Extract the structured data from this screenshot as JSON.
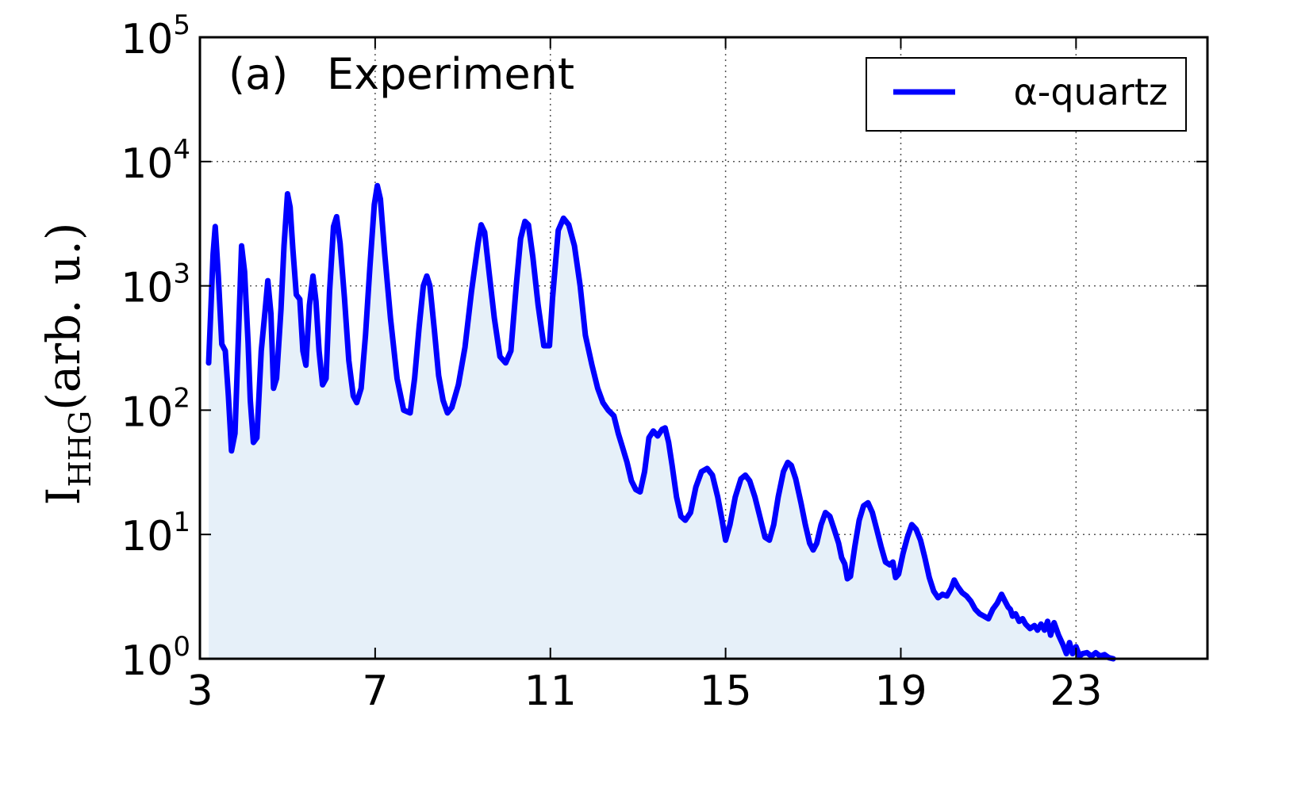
{
  "chart_data": {
    "type": "line",
    "panel_label": "(a)",
    "title": "Experiment",
    "xlabel": "",
    "ylabel": {
      "base": "I",
      "subscript": "HHG",
      "rest": "(arb. u.)"
    },
    "xlim": [
      3,
      26
    ],
    "ylim": [
      1,
      100000
    ],
    "yscale": "log",
    "grid": true,
    "legend_position": "top-right",
    "xticks": [
      {
        "value": 3,
        "label": "3"
      },
      {
        "value": 7,
        "label": "7"
      },
      {
        "value": 11,
        "label": "11"
      },
      {
        "value": 15,
        "label": "15"
      },
      {
        "value": 19,
        "label": "19"
      },
      {
        "value": 23,
        "label": "23"
      }
    ],
    "yticks": [
      {
        "value": 1,
        "base": "10",
        "exp": "0"
      },
      {
        "value": 10,
        "base": "10",
        "exp": "1"
      },
      {
        "value": 100,
        "base": "10",
        "exp": "2"
      },
      {
        "value": 1000,
        "base": "10",
        "exp": "3"
      },
      {
        "value": 10000,
        "base": "10",
        "exp": "4"
      },
      {
        "value": 100000,
        "base": "10",
        "exp": "5"
      }
    ],
    "series": [
      {
        "name": "α-quartz",
        "color": "#0000ff",
        "fill": "#e6f0f9",
        "points": [
          [
            3.2,
            240
          ],
          [
            3.25,
            650
          ],
          [
            3.3,
            1800
          ],
          [
            3.35,
            3000
          ],
          [
            3.42,
            1200
          ],
          [
            3.5,
            340
          ],
          [
            3.58,
            300
          ],
          [
            3.65,
            130
          ],
          [
            3.72,
            47
          ],
          [
            3.8,
            65
          ],
          [
            3.88,
            400
          ],
          [
            3.95,
            2100
          ],
          [
            4.02,
            1300
          ],
          [
            4.1,
            350
          ],
          [
            4.15,
            120
          ],
          [
            4.22,
            55
          ],
          [
            4.3,
            60
          ],
          [
            4.4,
            300
          ],
          [
            4.5,
            700
          ],
          [
            4.55,
            1100
          ],
          [
            4.62,
            600
          ],
          [
            4.68,
            150
          ],
          [
            4.75,
            180
          ],
          [
            4.85,
            650
          ],
          [
            4.92,
            2100
          ],
          [
            5.0,
            5500
          ],
          [
            5.06,
            4300
          ],
          [
            5.12,
            2000
          ],
          [
            5.2,
            850
          ],
          [
            5.28,
            780
          ],
          [
            5.35,
            300
          ],
          [
            5.42,
            230
          ],
          [
            5.5,
            700
          ],
          [
            5.58,
            1200
          ],
          [
            5.65,
            750
          ],
          [
            5.72,
            300
          ],
          [
            5.8,
            160
          ],
          [
            5.88,
            180
          ],
          [
            5.96,
            900
          ],
          [
            6.05,
            3000
          ],
          [
            6.12,
            3600
          ],
          [
            6.2,
            2200
          ],
          [
            6.3,
            800
          ],
          [
            6.4,
            250
          ],
          [
            6.5,
            130
          ],
          [
            6.58,
            115
          ],
          [
            6.68,
            150
          ],
          [
            6.78,
            400
          ],
          [
            6.88,
            1400
          ],
          [
            6.98,
            4500
          ],
          [
            7.05,
            6400
          ],
          [
            7.12,
            5000
          ],
          [
            7.22,
            1800
          ],
          [
            7.35,
            550
          ],
          [
            7.5,
            180
          ],
          [
            7.65,
            100
          ],
          [
            7.8,
            95
          ],
          [
            7.9,
            180
          ],
          [
            8.0,
            450
          ],
          [
            8.1,
            1000
          ],
          [
            8.18,
            1200
          ],
          [
            8.25,
            1000
          ],
          [
            8.35,
            450
          ],
          [
            8.45,
            190
          ],
          [
            8.55,
            120
          ],
          [
            8.65,
            95
          ],
          [
            8.75,
            105
          ],
          [
            8.9,
            160
          ],
          [
            9.05,
            320
          ],
          [
            9.2,
            900
          ],
          [
            9.35,
            2200
          ],
          [
            9.42,
            3100
          ],
          [
            9.5,
            2700
          ],
          [
            9.6,
            1300
          ],
          [
            9.72,
            550
          ],
          [
            9.85,
            270
          ],
          [
            9.98,
            240
          ],
          [
            10.1,
            300
          ],
          [
            10.22,
            1000
          ],
          [
            10.32,
            2400
          ],
          [
            10.42,
            3300
          ],
          [
            10.5,
            3100
          ],
          [
            10.6,
            1700
          ],
          [
            10.72,
            700
          ],
          [
            10.85,
            330
          ],
          [
            10.98,
            330
          ],
          [
            11.05,
            800
          ],
          [
            11.18,
            2800
          ],
          [
            11.3,
            3500
          ],
          [
            11.42,
            3100
          ],
          [
            11.55,
            2100
          ],
          [
            11.68,
            1000
          ],
          [
            11.8,
            400
          ],
          [
            11.95,
            230
          ],
          [
            12.08,
            150
          ],
          [
            12.2,
            115
          ],
          [
            12.32,
            100
          ],
          [
            12.45,
            90
          ],
          [
            12.55,
            65
          ],
          [
            12.65,
            50
          ],
          [
            12.75,
            38
          ],
          [
            12.85,
            27
          ],
          [
            12.95,
            23
          ],
          [
            13.05,
            22
          ],
          [
            13.15,
            32
          ],
          [
            13.25,
            60
          ],
          [
            13.35,
            68
          ],
          [
            13.45,
            62
          ],
          [
            13.55,
            70
          ],
          [
            13.62,
            72
          ],
          [
            13.7,
            55
          ],
          [
            13.78,
            36
          ],
          [
            13.88,
            20
          ],
          [
            13.98,
            14
          ],
          [
            14.08,
            13
          ],
          [
            14.2,
            15
          ],
          [
            14.32,
            24
          ],
          [
            14.45,
            32
          ],
          [
            14.58,
            34
          ],
          [
            14.7,
            30
          ],
          [
            14.82,
            20
          ],
          [
            14.92,
            13
          ],
          [
            15.0,
            9
          ],
          [
            15.1,
            12
          ],
          [
            15.22,
            20
          ],
          [
            15.35,
            28
          ],
          [
            15.45,
            30
          ],
          [
            15.55,
            27
          ],
          [
            15.67,
            20
          ],
          [
            15.78,
            14
          ],
          [
            15.9,
            9.5
          ],
          [
            16.0,
            9
          ],
          [
            16.1,
            12
          ],
          [
            16.2,
            20
          ],
          [
            16.32,
            32
          ],
          [
            16.42,
            38
          ],
          [
            16.5,
            36
          ],
          [
            16.6,
            28
          ],
          [
            16.72,
            18
          ],
          [
            16.82,
            12
          ],
          [
            16.92,
            8.5
          ],
          [
            17.0,
            7.5
          ],
          [
            17.08,
            8.5
          ],
          [
            17.18,
            12
          ],
          [
            17.28,
            15
          ],
          [
            17.38,
            14
          ],
          [
            17.48,
            11
          ],
          [
            17.58,
            8.5
          ],
          [
            17.65,
            6.5
          ],
          [
            17.72,
            5.8
          ],
          [
            17.78,
            4.4
          ],
          [
            17.85,
            4.6
          ],
          [
            17.95,
            8
          ],
          [
            18.05,
            13
          ],
          [
            18.15,
            17
          ],
          [
            18.25,
            18
          ],
          [
            18.35,
            15
          ],
          [
            18.45,
            11
          ],
          [
            18.55,
            8
          ],
          [
            18.65,
            6
          ],
          [
            18.75,
            5.7
          ],
          [
            18.82,
            6
          ],
          [
            18.88,
            4.5
          ],
          [
            18.95,
            4.8
          ],
          [
            19.05,
            7
          ],
          [
            19.15,
            9.5
          ],
          [
            19.25,
            12
          ],
          [
            19.35,
            11
          ],
          [
            19.45,
            9
          ],
          [
            19.55,
            6.5
          ],
          [
            19.65,
            4.5
          ],
          [
            19.75,
            3.5
          ],
          [
            19.85,
            3.1
          ],
          [
            19.95,
            3.3
          ],
          [
            20.05,
            3.2
          ],
          [
            20.15,
            3.7
          ],
          [
            20.22,
            4.3
          ],
          [
            20.3,
            3.8
          ],
          [
            20.4,
            3.4
          ],
          [
            20.5,
            3.2
          ],
          [
            20.6,
            2.9
          ],
          [
            20.7,
            2.5
          ],
          [
            20.8,
            2.3
          ],
          [
            20.9,
            2.2
          ],
          [
            21.0,
            2.1
          ],
          [
            21.1,
            2.5
          ],
          [
            21.2,
            2.8
          ],
          [
            21.3,
            3.3
          ],
          [
            21.38,
            2.9
          ],
          [
            21.45,
            2.6
          ],
          [
            21.5,
            2.5
          ],
          [
            21.55,
            2.2
          ],
          [
            21.62,
            2.3
          ],
          [
            21.7,
            2.0
          ],
          [
            21.78,
            2.1
          ],
          [
            21.85,
            1.9
          ],
          [
            21.95,
            1.75
          ],
          [
            22.05,
            1.85
          ],
          [
            22.12,
            1.7
          ],
          [
            22.2,
            1.9
          ],
          [
            22.28,
            1.7
          ],
          [
            22.35,
            2.0
          ],
          [
            22.42,
            1.55
          ],
          [
            22.5,
            1.95
          ],
          [
            22.6,
            1.55
          ],
          [
            22.7,
            1.3
          ],
          [
            22.78,
            1.1
          ],
          [
            22.85,
            1.35
          ],
          [
            22.92,
            1.1
          ],
          [
            23.0,
            1.25
          ],
          [
            23.08,
            1.05
          ],
          [
            23.15,
            1.1
          ],
          [
            23.25,
            1.12
          ],
          [
            23.35,
            1.05
          ],
          [
            23.45,
            1.12
          ],
          [
            23.55,
            1.05
          ],
          [
            23.65,
            1.08
          ],
          [
            23.75,
            1.02
          ],
          [
            23.85,
            1.0
          ]
        ]
      }
    ]
  }
}
